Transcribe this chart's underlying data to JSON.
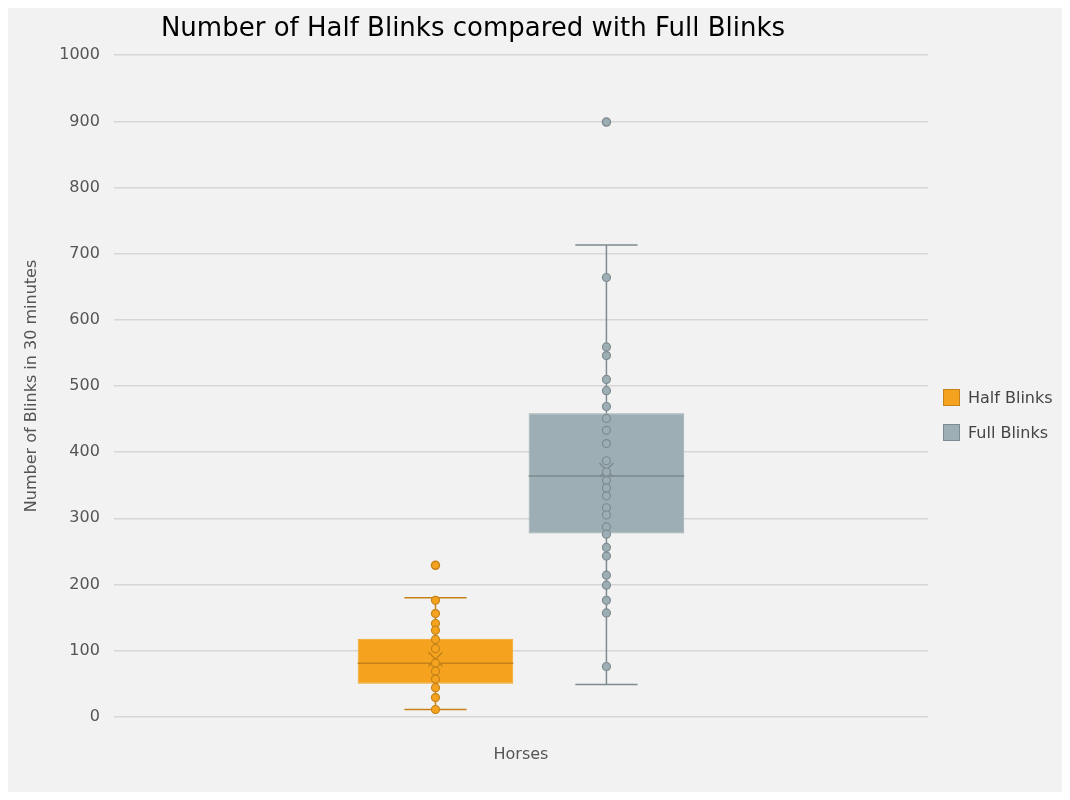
{
  "chart_data": {
    "type": "box",
    "title": "Number of Half Blinks compared with Full Blinks",
    "ylabel": "Number of Blinks in 30 minutes",
    "categories": [
      "Horses"
    ],
    "ylim": [
      0,
      1000
    ],
    "yticks": [
      0,
      100,
      200,
      300,
      400,
      500,
      600,
      700,
      800,
      900,
      1000
    ],
    "grid": "y",
    "legend": "right",
    "marker": "circle",
    "series": [
      {
        "name": "Half Blinks",
        "type": "box",
        "color": "#f5a31f",
        "boxes": [
          {
            "low": 11,
            "q1": 50,
            "median": 81,
            "q3": 118,
            "high": 180,
            "mean": 87,
            "outliers": [
              229
            ]
          }
        ]
      },
      {
        "name": "Full Blinks",
        "type": "box",
        "color": "#9daeb4",
        "boxes": [
          {
            "low": 49,
            "q1": 277,
            "median": 364,
            "q3": 459,
            "high": 713,
            "mean": 373,
            "outliers": [
              899
            ]
          }
        ]
      },
      {
        "type": "scatter",
        "color": "#f5a31f",
        "x": [
          "Horses",
          "Horses",
          "Horses",
          "Horses",
          "Horses",
          "Horses",
          "Horses",
          "Horses",
          "Horses",
          "Horses",
          "Horses",
          "Horses"
        ],
        "values": [
          176,
          156,
          141,
          131,
          117,
          103,
          81,
          69,
          57,
          44,
          29,
          11
        ]
      },
      {
        "type": "scatter",
        "color": "#9daeb4",
        "x": [
          "Horses",
          "Horses",
          "Horses",
          "Horses",
          "Horses",
          "Horses",
          "Horses",
          "Horses",
          "Horses",
          "Horses",
          "Horses",
          "Horses",
          "Horses",
          "Horses",
          "Horses",
          "Horses",
          "Horses",
          "Horses",
          "Horses",
          "Horses",
          "Horses",
          "Horses",
          "Horses",
          "Horses",
          "Horses"
        ],
        "values": [
          664,
          559,
          546,
          510,
          493,
          469,
          451,
          433,
          413,
          387,
          357,
          346,
          334,
          316,
          305,
          287,
          276,
          256,
          243,
          214,
          199,
          176,
          157,
          76,
          370
        ]
      }
    ]
  }
}
